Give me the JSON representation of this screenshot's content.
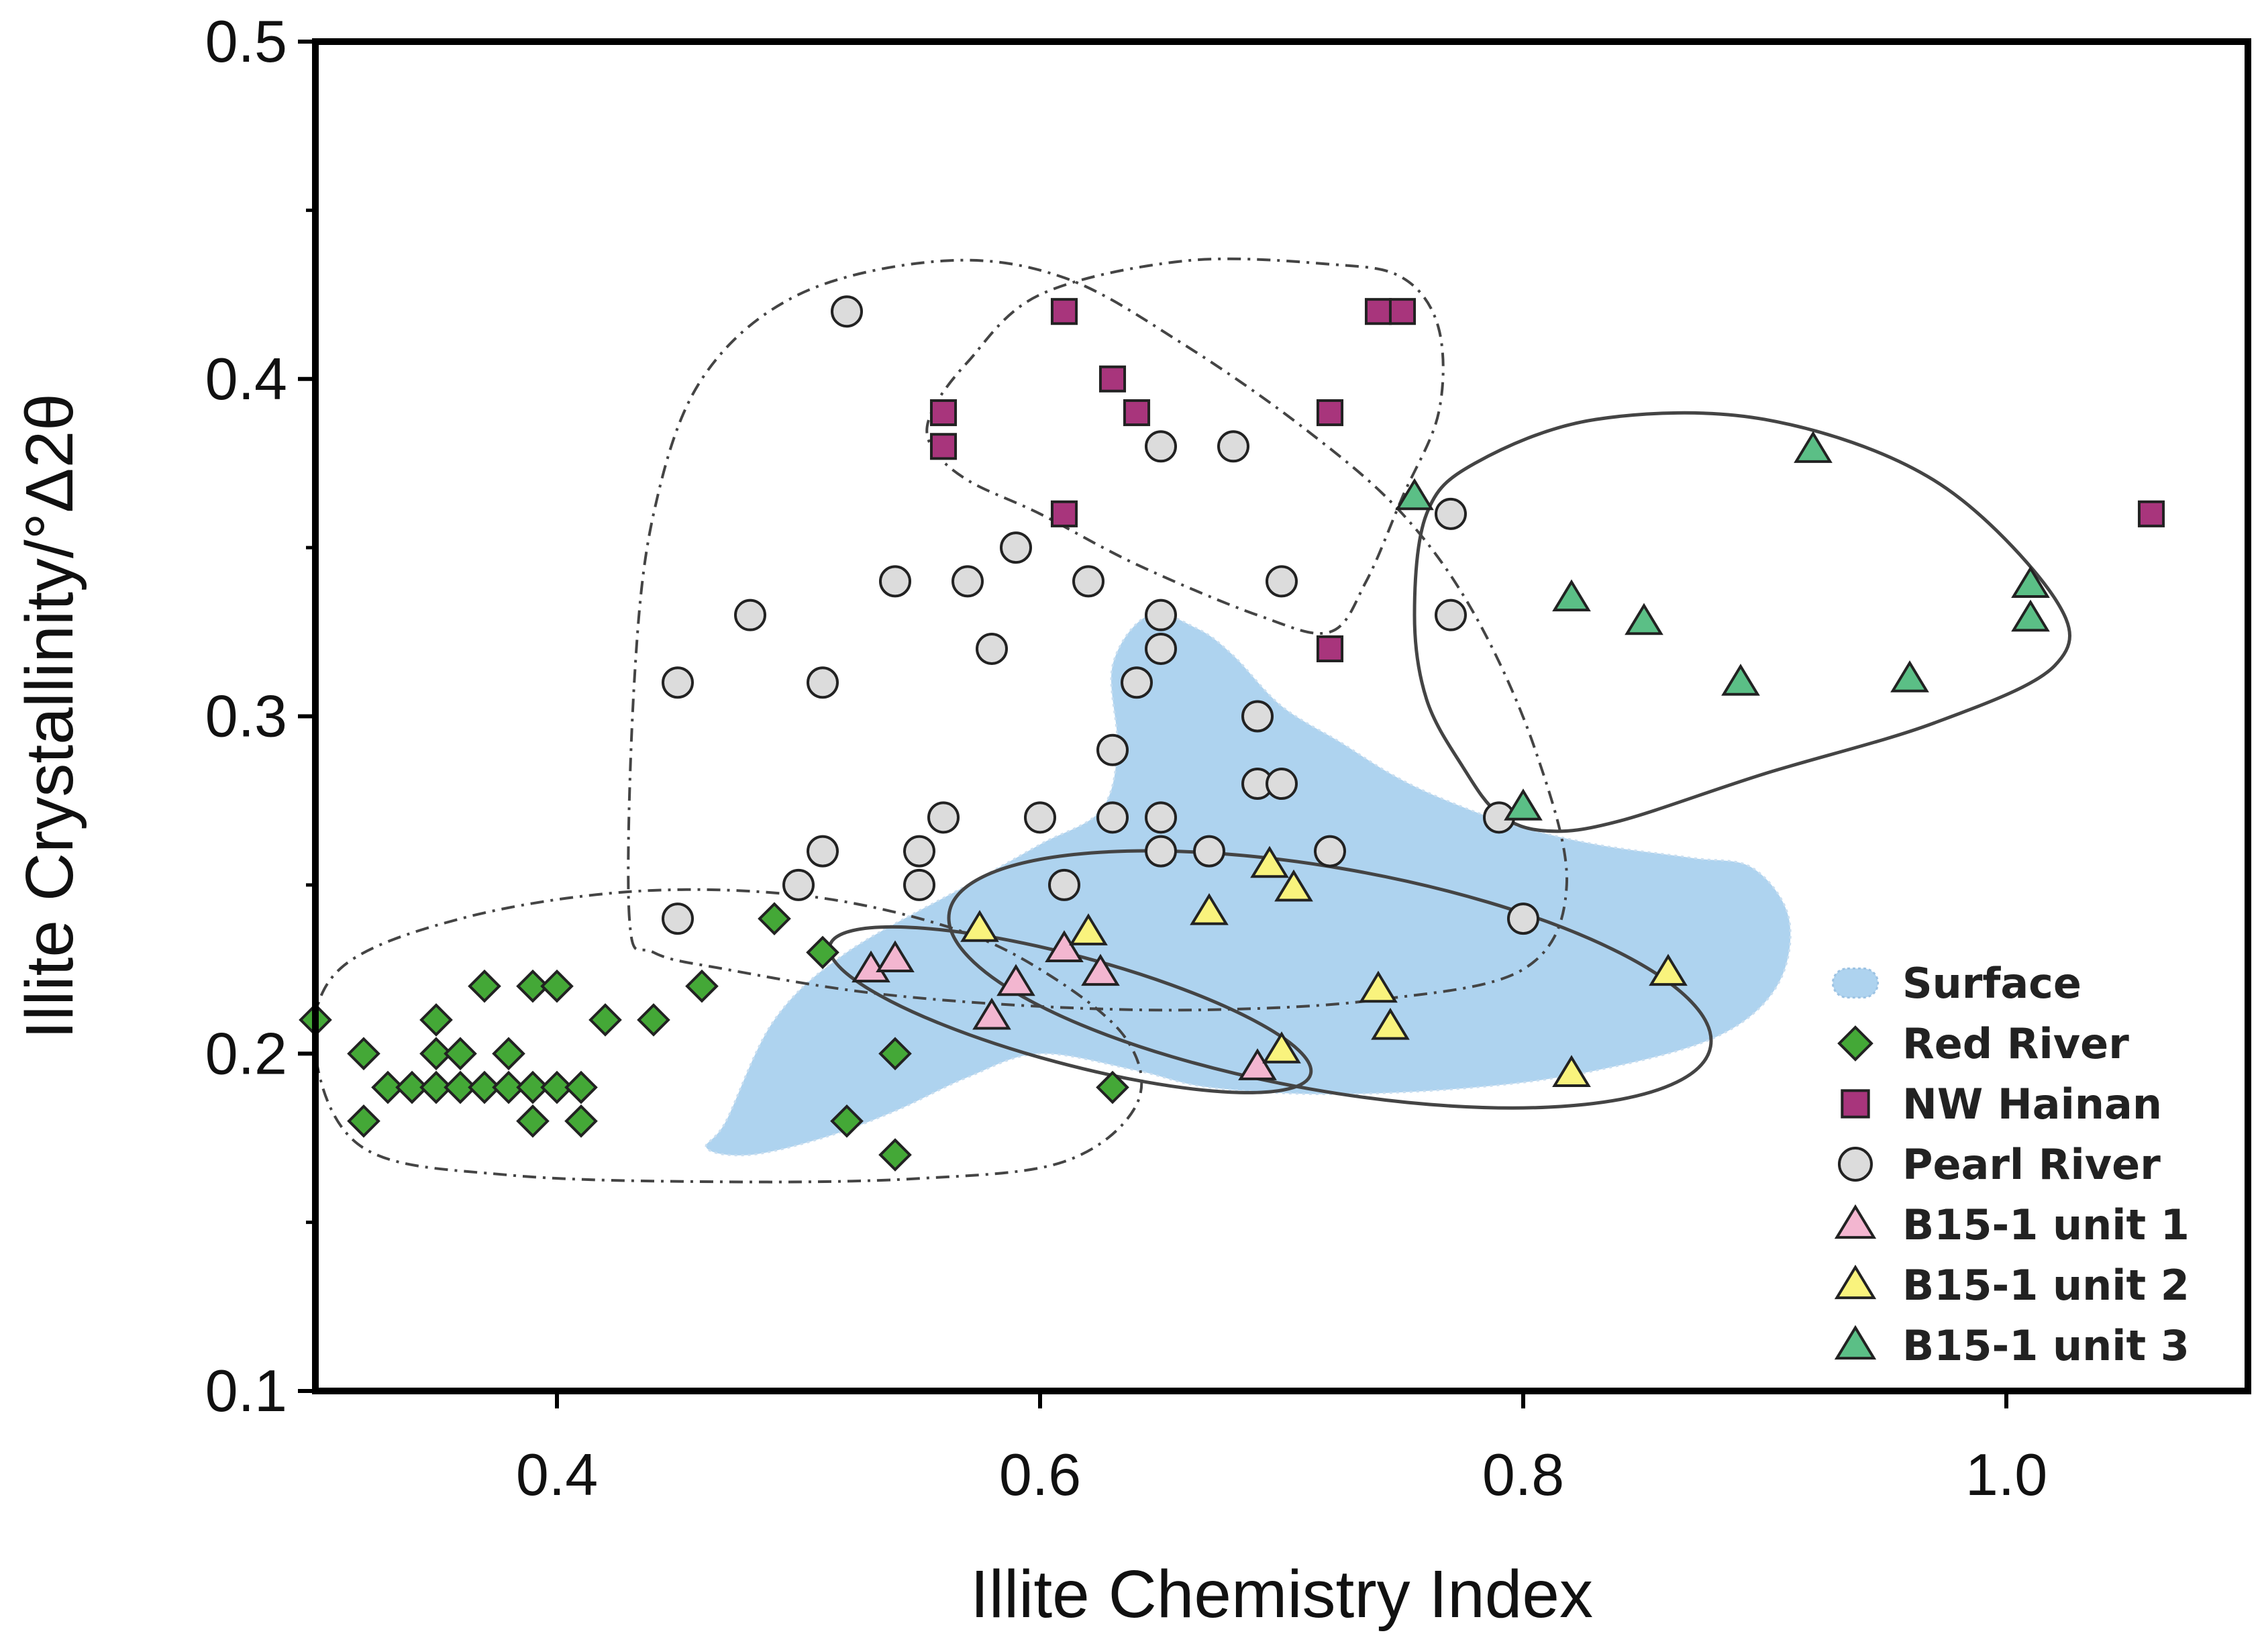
{
  "chart_data": {
    "type": "scatter",
    "xlabel": "Illite Chemistry Index",
    "ylabel": "Illite Crystallinity/°Δ2θ",
    "xlim": [
      0.3,
      1.1
    ],
    "ylim": [
      0.1,
      0.5
    ],
    "xticks": [
      0.4,
      0.6,
      0.8,
      1.0
    ],
    "xtick_labels": [
      "0.4",
      "0.6",
      "0.8",
      "1.0"
    ],
    "yticks": [
      0.1,
      0.2,
      0.3,
      0.4,
      0.5
    ],
    "ytick_labels": [
      "0.1",
      "0.2",
      "0.3",
      "0.4",
      "0.5"
    ],
    "legend_position": "bottom-right",
    "legend": [
      {
        "label": "Surface",
        "marker": "region",
        "color": "#aed3ef"
      },
      {
        "label": "Red River",
        "marker": "diamond",
        "color": "#44a837"
      },
      {
        "label": "NW Hainan",
        "marker": "square",
        "color": "#a8357c"
      },
      {
        "label": "Pearl River",
        "marker": "circle",
        "color": "#dcdcdc"
      },
      {
        "label": "B15-1 unit 1",
        "marker": "triangle",
        "color": "#f3b6d0"
      },
      {
        "label": "B15-1 unit 2",
        "marker": "triangle",
        "color": "#f9f37d"
      },
      {
        "label": "B15-1 unit 3",
        "marker": "triangle",
        "color": "#5bbf86"
      }
    ],
    "series": [
      {
        "name": "Red River",
        "marker": "diamond",
        "color": "#44a837",
        "points": [
          [
            0.3,
            0.21
          ],
          [
            0.32,
            0.2
          ],
          [
            0.32,
            0.18
          ],
          [
            0.33,
            0.19
          ],
          [
            0.34,
            0.19
          ],
          [
            0.35,
            0.21
          ],
          [
            0.35,
            0.2
          ],
          [
            0.35,
            0.19
          ],
          [
            0.36,
            0.2
          ],
          [
            0.36,
            0.19
          ],
          [
            0.37,
            0.22
          ],
          [
            0.37,
            0.19
          ],
          [
            0.38,
            0.2
          ],
          [
            0.38,
            0.19
          ],
          [
            0.39,
            0.22
          ],
          [
            0.39,
            0.19
          ],
          [
            0.39,
            0.18
          ],
          [
            0.4,
            0.22
          ],
          [
            0.4,
            0.19
          ],
          [
            0.41,
            0.19
          ],
          [
            0.41,
            0.18
          ],
          [
            0.42,
            0.21
          ],
          [
            0.44,
            0.21
          ],
          [
            0.46,
            0.22
          ],
          [
            0.49,
            0.24
          ],
          [
            0.51,
            0.23
          ],
          [
            0.52,
            0.18
          ],
          [
            0.54,
            0.2
          ],
          [
            0.54,
            0.17
          ],
          [
            0.63,
            0.19
          ]
        ]
      },
      {
        "name": "NW Hainan",
        "marker": "square",
        "color": "#a8357c",
        "points": [
          [
            0.56,
            0.39
          ],
          [
            0.56,
            0.38
          ],
          [
            0.61,
            0.42
          ],
          [
            0.61,
            0.36
          ],
          [
            0.63,
            0.4
          ],
          [
            0.64,
            0.39
          ],
          [
            0.72,
            0.39
          ],
          [
            0.72,
            0.32
          ],
          [
            0.74,
            0.42
          ],
          [
            0.75,
            0.42
          ],
          [
            1.06,
            0.36
          ]
        ]
      },
      {
        "name": "Pearl River",
        "marker": "circle",
        "color": "#dcdcdc",
        "points": [
          [
            0.52,
            0.42
          ],
          [
            0.45,
            0.31
          ],
          [
            0.45,
            0.24
          ],
          [
            0.48,
            0.33
          ],
          [
            0.5,
            0.25
          ],
          [
            0.51,
            0.31
          ],
          [
            0.51,
            0.26
          ],
          [
            0.54,
            0.34
          ],
          [
            0.55,
            0.26
          ],
          [
            0.55,
            0.25
          ],
          [
            0.56,
            0.27
          ],
          [
            0.57,
            0.34
          ],
          [
            0.58,
            0.32
          ],
          [
            0.59,
            0.35
          ],
          [
            0.6,
            0.27
          ],
          [
            0.61,
            0.25
          ],
          [
            0.62,
            0.34
          ],
          [
            0.63,
            0.29
          ],
          [
            0.63,
            0.27
          ],
          [
            0.64,
            0.31
          ],
          [
            0.65,
            0.38
          ],
          [
            0.65,
            0.33
          ],
          [
            0.65,
            0.32
          ],
          [
            0.65,
            0.27
          ],
          [
            0.65,
            0.26
          ],
          [
            0.67,
            0.26
          ],
          [
            0.68,
            0.38
          ],
          [
            0.69,
            0.3
          ],
          [
            0.69,
            0.28
          ],
          [
            0.7,
            0.34
          ],
          [
            0.7,
            0.28
          ],
          [
            0.72,
            0.26
          ],
          [
            0.77,
            0.36
          ],
          [
            0.77,
            0.33
          ],
          [
            0.79,
            0.27
          ],
          [
            0.8,
            0.24
          ]
        ]
      },
      {
        "name": "B15-1 unit 1",
        "marker": "triangle",
        "color": "#f3b6d0",
        "points": [
          [
            0.53,
            0.225
          ],
          [
            0.54,
            0.228
          ],
          [
            0.58,
            0.211
          ],
          [
            0.59,
            0.221
          ],
          [
            0.61,
            0.231
          ],
          [
            0.625,
            0.224
          ],
          [
            0.69,
            0.196
          ]
        ]
      },
      {
        "name": "B15-1 unit 2",
        "marker": "triangle",
        "color": "#f9f37d",
        "points": [
          [
            0.575,
            0.237
          ],
          [
            0.62,
            0.236
          ],
          [
            0.67,
            0.242
          ],
          [
            0.695,
            0.256
          ],
          [
            0.705,
            0.249
          ],
          [
            0.7,
            0.201
          ],
          [
            0.74,
            0.219
          ],
          [
            0.745,
            0.208
          ],
          [
            0.82,
            0.194
          ],
          [
            0.86,
            0.224
          ]
        ]
      },
      {
        "name": "B15-1 unit 3",
        "marker": "triangle",
        "color": "#5bbf86",
        "points": [
          [
            0.755,
            0.365
          ],
          [
            0.8,
            0.273
          ],
          [
            0.82,
            0.335
          ],
          [
            0.85,
            0.328
          ],
          [
            0.89,
            0.31
          ],
          [
            0.92,
            0.379
          ],
          [
            0.96,
            0.311
          ],
          [
            1.01,
            0.339
          ],
          [
            1.01,
            0.329
          ]
        ]
      }
    ],
    "regions": [
      {
        "name": "Surface",
        "style": "filled",
        "color": "#aed3ef",
        "vertices": [
          [
            0.47,
            0.18
          ],
          [
            0.49,
            0.21
          ],
          [
            0.52,
            0.23
          ],
          [
            0.57,
            0.25
          ],
          [
            0.6,
            0.262
          ],
          [
            0.625,
            0.272
          ],
          [
            0.632,
            0.29
          ],
          [
            0.63,
            0.315
          ],
          [
            0.645,
            0.33
          ],
          [
            0.665,
            0.326
          ],
          [
            0.68,
            0.318
          ],
          [
            0.7,
            0.303
          ],
          [
            0.725,
            0.292
          ],
          [
            0.745,
            0.283
          ],
          [
            0.765,
            0.276
          ],
          [
            0.795,
            0.268
          ],
          [
            0.83,
            0.262
          ],
          [
            0.87,
            0.258
          ],
          [
            0.895,
            0.255
          ],
          [
            0.91,
            0.24
          ],
          [
            0.905,
            0.22
          ],
          [
            0.88,
            0.205
          ],
          [
            0.83,
            0.195
          ],
          [
            0.78,
            0.19
          ],
          [
            0.72,
            0.188
          ],
          [
            0.67,
            0.19
          ],
          [
            0.64,
            0.195
          ],
          [
            0.6,
            0.2
          ],
          [
            0.57,
            0.193
          ],
          [
            0.54,
            0.183
          ],
          [
            0.51,
            0.175
          ],
          [
            0.48,
            0.17
          ],
          [
            0.462,
            0.172
          ]
        ]
      },
      {
        "name": "Red River envelope",
        "style": "dash-dot",
        "vertices": [
          [
            0.3,
            0.2
          ],
          [
            0.31,
            0.225
          ],
          [
            0.36,
            0.24
          ],
          [
            0.43,
            0.248
          ],
          [
            0.5,
            0.247
          ],
          [
            0.56,
            0.238
          ],
          [
            0.6,
            0.225
          ],
          [
            0.635,
            0.205
          ],
          [
            0.64,
            0.185
          ],
          [
            0.61,
            0.168
          ],
          [
            0.55,
            0.163
          ],
          [
            0.47,
            0.162
          ],
          [
            0.38,
            0.164
          ],
          [
            0.32,
            0.172
          ]
        ]
      },
      {
        "name": "Pearl River envelope",
        "style": "dash-dot",
        "vertices": [
          [
            0.43,
            0.24
          ],
          [
            0.432,
            0.31
          ],
          [
            0.44,
            0.36
          ],
          [
            0.46,
            0.4
          ],
          [
            0.5,
            0.425
          ],
          [
            0.56,
            0.435
          ],
          [
            0.61,
            0.43
          ],
          [
            0.66,
            0.41
          ],
          [
            0.71,
            0.385
          ],
          [
            0.75,
            0.36
          ],
          [
            0.78,
            0.33
          ],
          [
            0.805,
            0.29
          ],
          [
            0.818,
            0.25
          ],
          [
            0.8,
            0.225
          ],
          [
            0.74,
            0.216
          ],
          [
            0.67,
            0.213
          ],
          [
            0.6,
            0.214
          ],
          [
            0.53,
            0.218
          ],
          [
            0.47,
            0.225
          ],
          [
            0.44,
            0.23
          ]
        ]
      },
      {
        "name": "NW Hainan envelope",
        "style": "dash-dot",
        "vertices": [
          [
            0.555,
            0.39
          ],
          [
            0.57,
            0.405
          ],
          [
            0.6,
            0.425
          ],
          [
            0.66,
            0.435
          ],
          [
            0.72,
            0.434
          ],
          [
            0.75,
            0.43
          ],
          [
            0.765,
            0.415
          ],
          [
            0.765,
            0.39
          ],
          [
            0.75,
            0.365
          ],
          [
            0.735,
            0.34
          ],
          [
            0.72,
            0.325
          ],
          [
            0.69,
            0.33
          ],
          [
            0.64,
            0.345
          ],
          [
            0.6,
            0.36
          ],
          [
            0.57,
            0.37
          ],
          [
            0.555,
            0.38
          ]
        ]
      },
      {
        "name": "B15-1 unit 3 envelope",
        "style": "solid",
        "vertices": [
          [
            0.755,
            0.33
          ],
          [
            0.76,
            0.36
          ],
          [
            0.78,
            0.375
          ],
          [
            0.83,
            0.388
          ],
          [
            0.9,
            0.388
          ],
          [
            0.97,
            0.37
          ],
          [
            1.02,
            0.335
          ],
          [
            1.02,
            0.315
          ],
          [
            0.97,
            0.298
          ],
          [
            0.9,
            0.283
          ],
          [
            0.84,
            0.269
          ],
          [
            0.81,
            0.266
          ],
          [
            0.79,
            0.271
          ],
          [
            0.775,
            0.285
          ],
          [
            0.76,
            0.305
          ]
        ]
      },
      {
        "name": "B15-1 unit 2 envelope",
        "style": "solid",
        "ellipse": {
          "cx": 0.72,
          "cy": 0.222,
          "rx": 0.16,
          "ry": 0.033,
          "rotate_deg": 10
        }
      },
      {
        "name": "B15-1 unit 1 envelope",
        "style": "solid",
        "ellipse": {
          "cx": 0.6125,
          "cy": 0.213,
          "rx": 0.103,
          "ry": 0.016,
          "rotate_deg": 15
        }
      }
    ]
  }
}
